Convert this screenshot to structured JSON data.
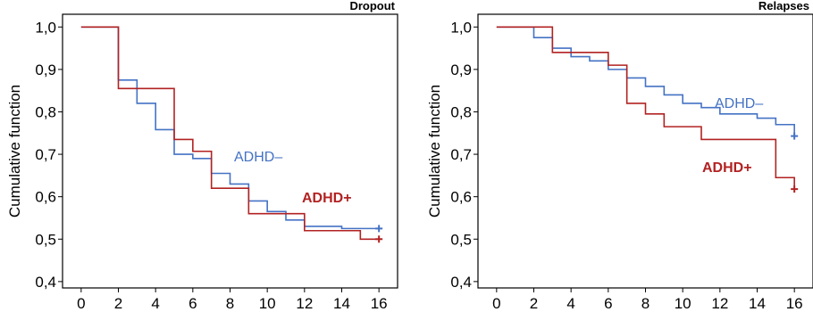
{
  "chart_data": [
    {
      "type": "line",
      "step": true,
      "title": "Dropout",
      "ylabel": "Cumulative function",
      "xlabel": "",
      "xlim": [
        -1,
        17
      ],
      "ylim": [
        0.385,
        1.03
      ],
      "xticks": [
        0,
        2,
        4,
        6,
        8,
        10,
        12,
        14,
        16
      ],
      "xtick_labels": [
        "0",
        "2",
        "4",
        "6",
        "8",
        "10",
        "12",
        "14",
        "16"
      ],
      "yticks": [
        0.4,
        0.5,
        0.6,
        0.7,
        0.8,
        0.9,
        1.0
      ],
      "ytick_labels": [
        "0,4",
        "0,5",
        "0,6",
        "0,7",
        "0,8",
        "0,9",
        "1,0"
      ],
      "grid": false,
      "series": [
        {
          "name": "ADHD–",
          "color": "#4472c4",
          "x": [
            0,
            2,
            3,
            4,
            5,
            6,
            7,
            8,
            9,
            10,
            11,
            12,
            14,
            16
          ],
          "y": [
            1.0,
            0.875,
            0.82,
            0.758,
            0.7,
            0.69,
            0.655,
            0.63,
            0.59,
            0.565,
            0.545,
            0.53,
            0.525,
            0.525
          ],
          "censor": [
            16,
            0.525
          ]
        },
        {
          "name": "ADHD+",
          "color": "#b22222",
          "x": [
            0,
            2,
            5,
            6,
            7,
            9,
            12,
            15,
            16
          ],
          "y": [
            1.0,
            0.855,
            0.735,
            0.707,
            0.62,
            0.56,
            0.52,
            0.5,
            0.5
          ],
          "censor": [
            16,
            0.5
          ]
        }
      ]
    },
    {
      "type": "line",
      "step": true,
      "title": "Relapses",
      "ylabel": "Cumulative function",
      "xlabel": "",
      "xlim": [
        -1,
        17
      ],
      "ylim": [
        0.385,
        1.03
      ],
      "xticks": [
        0,
        2,
        4,
        6,
        8,
        10,
        12,
        14,
        16
      ],
      "xtick_labels": [
        "0",
        "2",
        "4",
        "6",
        "8",
        "10",
        "12",
        "14",
        "16"
      ],
      "yticks": [
        0.4,
        0.5,
        0.6,
        0.7,
        0.8,
        0.9,
        1.0
      ],
      "ytick_labels": [
        "0,4",
        "0,5",
        "0,6",
        "0,7",
        "0,8",
        "0,9",
        "1,0"
      ],
      "grid": false,
      "series": [
        {
          "name": "ADHD–",
          "color": "#4472c4",
          "x": [
            0,
            2,
            3,
            4,
            5,
            6,
            7,
            8,
            9,
            10,
            11,
            12,
            14,
            15,
            16
          ],
          "y": [
            1.0,
            0.975,
            0.95,
            0.93,
            0.92,
            0.9,
            0.88,
            0.86,
            0.84,
            0.82,
            0.81,
            0.795,
            0.785,
            0.77,
            0.745
          ],
          "censor": [
            16,
            0.743
          ]
        },
        {
          "name": "ADHD+",
          "color": "#b22222",
          "x": [
            0,
            3,
            6,
            7,
            8,
            9,
            11,
            15,
            16
          ],
          "y": [
            1.0,
            0.94,
            0.91,
            0.82,
            0.795,
            0.765,
            0.735,
            0.645,
            0.62
          ],
          "censor": [
            16,
            0.618
          ]
        }
      ]
    }
  ]
}
